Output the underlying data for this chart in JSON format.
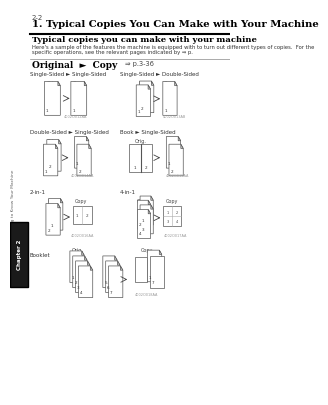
{
  "page_num": "2-2",
  "title": "1. Typical Copies You Can Make with Your Machine",
  "subtitle": "Typical copies you can make with your machine",
  "description": "Here's a sample of the features the machine is equipped with to turn out different types of copies.  For the\nspecific operations, see the relevant pages indicated by ⇒ p.",
  "sidebar_text": "Chapter 2",
  "sidebar_text2": "Getting to Know Your Machine",
  "bg_color": "#ffffff",
  "text_color": "#000000",
  "sidebar_bg": "#1a1a1a",
  "sidebar_text_color": "#ffffff"
}
